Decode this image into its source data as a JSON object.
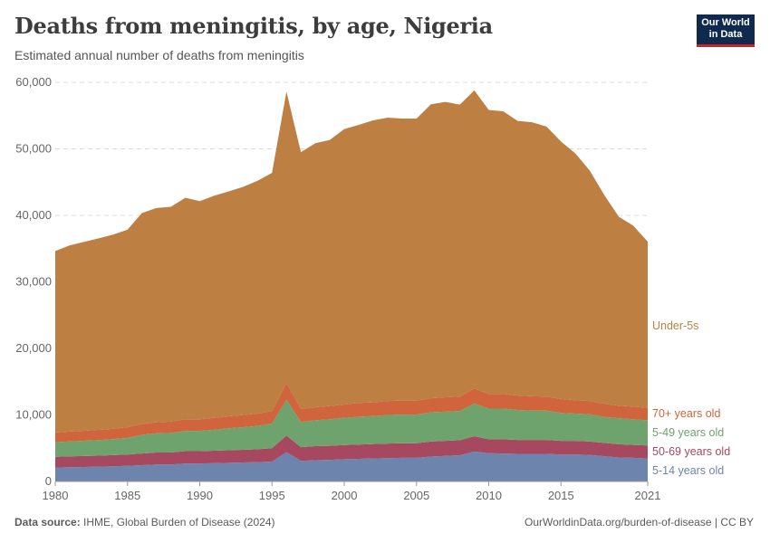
{
  "header": {
    "title": "Deaths from meningitis, by age, Nigeria",
    "subtitle": "Estimated annual number of deaths from meningitis"
  },
  "logo": {
    "line1": "Our World",
    "line2": "in Data"
  },
  "footer": {
    "source_label": "Data source:",
    "source_text": "IHME, Global Burden of Disease (2024)",
    "url_text": "OurWorldinData.org/burden-of-disease | CC BY"
  },
  "chart_data": {
    "type": "area",
    "stacked": true,
    "x": [
      1980,
      1981,
      1982,
      1983,
      1984,
      1985,
      1986,
      1987,
      1988,
      1989,
      1990,
      1991,
      1992,
      1993,
      1994,
      1995,
      1996,
      1997,
      1998,
      1999,
      2000,
      2001,
      2002,
      2003,
      2004,
      2005,
      2006,
      2007,
      2008,
      2009,
      2010,
      2011,
      2012,
      2013,
      2014,
      2015,
      2016,
      2017,
      2018,
      2019,
      2020,
      2021
    ],
    "xticks": [
      "1980",
      "1985",
      "1990",
      "1995",
      "2000",
      "2005",
      "2010",
      "2015",
      "2021"
    ],
    "yticks": [
      "0",
      "10,000",
      "20,000",
      "30,000",
      "40,000",
      "50,000",
      "60,000"
    ],
    "ylim": [
      0,
      60000
    ],
    "grid": true,
    "series": [
      {
        "name": "5-14 years old",
        "color": "#6d84ad",
        "values": [
          2100,
          2150,
          2180,
          2220,
          2280,
          2350,
          2450,
          2550,
          2550,
          2700,
          2700,
          2750,
          2800,
          2850,
          2900,
          3000,
          4400,
          3100,
          3200,
          3250,
          3350,
          3400,
          3450,
          3500,
          3550,
          3550,
          3750,
          3850,
          3950,
          4500,
          4250,
          4200,
          4150,
          4150,
          4150,
          4050,
          4050,
          4000,
          3800,
          3600,
          3550,
          3450
        ]
      },
      {
        "name": "50-69 years old",
        "color": "#a6485f",
        "values": [
          1600,
          1620,
          1640,
          1660,
          1680,
          1700,
          1750,
          1800,
          1800,
          1850,
          1850,
          1880,
          1900,
          1920,
          1950,
          2000,
          2500,
          2050,
          2100,
          2100,
          2120,
          2150,
          2180,
          2200,
          2200,
          2200,
          2250,
          2250,
          2250,
          2300,
          2100,
          2150,
          2100,
          2100,
          2100,
          2050,
          2050,
          2000,
          2000,
          2000,
          1950,
          1950
        ]
      },
      {
        "name": "5-49 years old",
        "color": "#6fa36d",
        "values": [
          2200,
          2250,
          2300,
          2350,
          2400,
          2500,
          2800,
          2900,
          2950,
          3050,
          3050,
          3150,
          3300,
          3400,
          3500,
          3700,
          5400,
          3800,
          3900,
          4000,
          4100,
          4200,
          4200,
          4300,
          4300,
          4300,
          4400,
          4400,
          4400,
          4900,
          4600,
          4600,
          4500,
          4400,
          4400,
          4200,
          4100,
          4100,
          3900,
          3900,
          3850,
          3800
        ]
      },
      {
        "name": "70+ years old",
        "color": "#d0643c",
        "values": [
          1450,
          1480,
          1500,
          1520,
          1550,
          1600,
          1650,
          1650,
          1700,
          1750,
          1750,
          1780,
          1800,
          1820,
          1850,
          1900,
          2500,
          1950,
          1950,
          2000,
          2000,
          2050,
          2050,
          2100,
          2100,
          2100,
          2100,
          2150,
          2150,
          2300,
          2200,
          2200,
          2150,
          2150,
          2100,
          2100,
          2000,
          2000,
          1950,
          1900,
          1900,
          1850
        ]
      },
      {
        "name": "Under-5s",
        "color": "#bd7f42",
        "values": [
          27300,
          28000,
          28400,
          28800,
          29200,
          29700,
          31700,
          32200,
          32300,
          33300,
          32800,
          33400,
          33800,
          34300,
          35000,
          35800,
          43800,
          38600,
          39700,
          40000,
          41400,
          41800,
          42400,
          42600,
          42400,
          42400,
          44200,
          44400,
          43900,
          44800,
          42700,
          42500,
          41300,
          41200,
          40600,
          38700,
          37100,
          34600,
          31400,
          28400,
          27200,
          25000
        ]
      }
    ],
    "labels_order": [
      "Under-5s",
      "70+ years old",
      "5-49 years old",
      "50-69 years old",
      "5-14 years old"
    ]
  }
}
